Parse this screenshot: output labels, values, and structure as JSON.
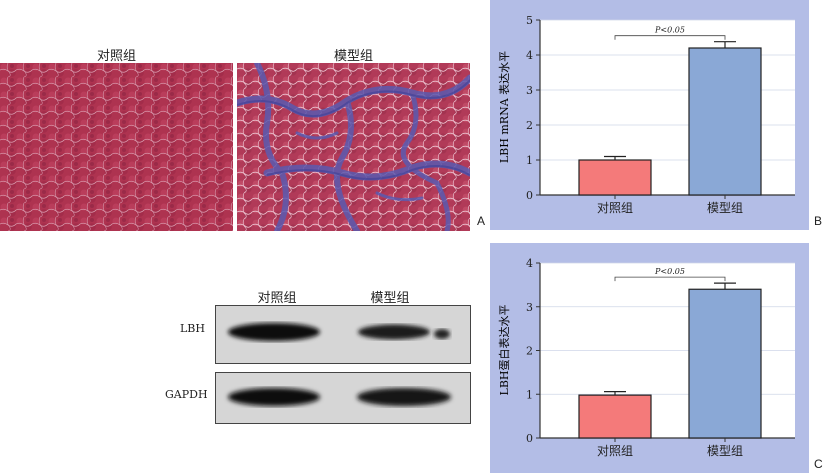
{
  "panelA": {
    "letter": "A",
    "left_title": "对照组",
    "right_title": "模型组"
  },
  "panelB": {
    "letter": "B",
    "ylabel": "LBH mRNA 表达水平",
    "sig_label": "P<0.05"
  },
  "panelC": {
    "letter": "C",
    "ylabel": "LBH蛋白表达水平",
    "sig_label": "P<0.05"
  },
  "blot": {
    "col1": "对照组",
    "col2": "模型组",
    "row1": "LBH",
    "row2": "GAPDH"
  },
  "colors": {
    "panel_bg": "#b3bde6",
    "control_bar": "#f47a7a",
    "model_bar": "#8aa8d6"
  },
  "chart_data": [
    {
      "type": "bar",
      "categories": [
        "对照组",
        "模型组"
      ],
      "values": [
        1.0,
        4.2
      ],
      "errors": [
        0.1,
        0.18
      ],
      "ylabel": "LBH mRNA 表达水平",
      "ylim": [
        0,
        5
      ],
      "yticks": [
        0,
        1,
        2,
        3,
        4,
        5
      ],
      "annotation": "P<0.05",
      "grid": true
    },
    {
      "type": "bar",
      "categories": [
        "对照组",
        "模型组"
      ],
      "values": [
        0.98,
        3.4
      ],
      "errors": [
        0.08,
        0.14
      ],
      "ylabel": "LBH蛋白表达水平",
      "ylim": [
        0,
        4
      ],
      "yticks": [
        0,
        1,
        2,
        3,
        4
      ],
      "annotation": "P<0.05",
      "grid": true
    }
  ]
}
